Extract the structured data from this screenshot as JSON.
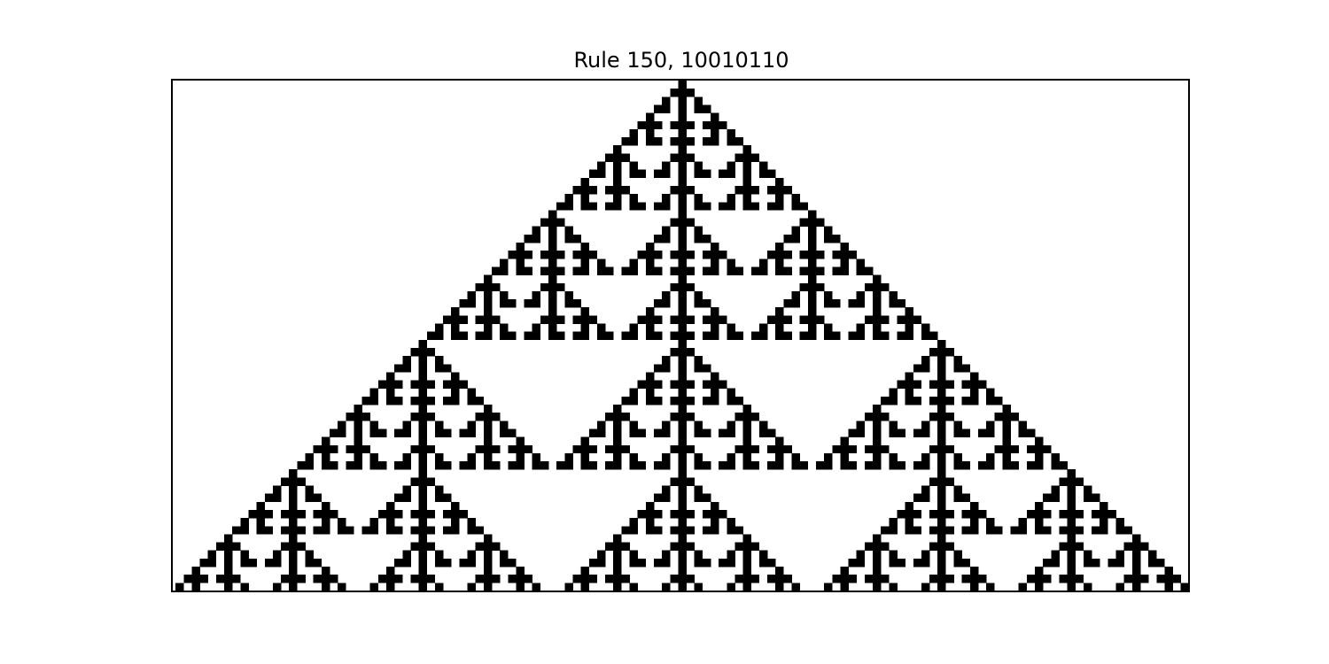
{
  "figure": {
    "title": "Rule 150, 10010110"
  },
  "automaton": {
    "rule_number": 150,
    "rule_bits": "10010110",
    "initial_condition": "single live cell in the center",
    "generations_shown": 64,
    "live_color": "#000000",
    "dead_color": "#ffffff"
  }
}
